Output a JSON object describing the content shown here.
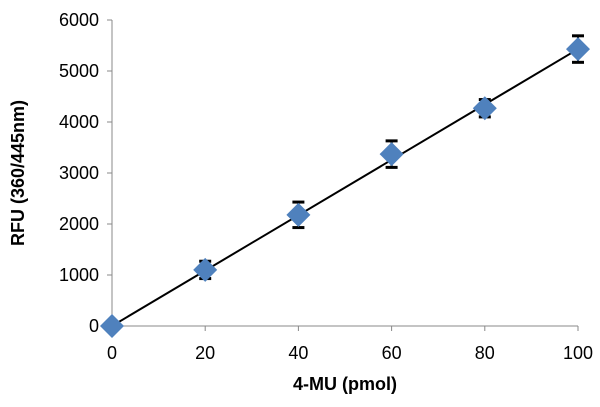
{
  "chart_data": {
    "type": "scatter",
    "title": "",
    "xlabel": "4-MU (pmol)",
    "ylabel": "RFU (360/445nm)",
    "xlim": [
      0,
      100
    ],
    "ylim": [
      0,
      6000
    ],
    "xticks": [
      0,
      20,
      40,
      60,
      80,
      100
    ],
    "yticks": [
      0,
      1000,
      2000,
      3000,
      4000,
      5000,
      6000
    ],
    "grid": false,
    "legend": "none",
    "marker_color": "#4f81bd",
    "marker": "diamond",
    "x": [
      0,
      20,
      40,
      60,
      80,
      100
    ],
    "y": [
      0,
      1100,
      2180,
      3370,
      4270,
      5430
    ],
    "error": [
      0,
      170,
      250,
      260,
      170,
      260
    ],
    "trendline": {
      "type": "linear",
      "color": "#000000",
      "x": [
        0,
        100
      ],
      "y": [
        0,
        5430
      ]
    }
  }
}
